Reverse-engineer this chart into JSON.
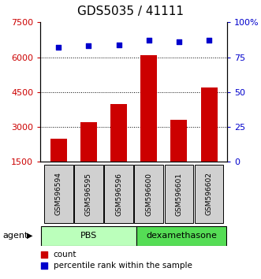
{
  "title": "GDS5035 / 41111",
  "samples": [
    "GSM596594",
    "GSM596595",
    "GSM596596",
    "GSM596600",
    "GSM596601",
    "GSM596602"
  ],
  "counts": [
    2500,
    3200,
    4000,
    6100,
    3300,
    4700
  ],
  "percentile_ranks": [
    82,
    83,
    84,
    87,
    86,
    87
  ],
  "groups": [
    "PBS",
    "PBS",
    "PBS",
    "dexamethasone",
    "dexamethasone",
    "dexamethasone"
  ],
  "pbs_color": "#bbffbb",
  "dexa_color": "#55dd55",
  "bar_color": "#cc0000",
  "point_color": "#0000cc",
  "left_yticks": [
    1500,
    3000,
    4500,
    6000,
    7500
  ],
  "left_ylim": [
    1500,
    7500
  ],
  "right_yticks": [
    0,
    25,
    50,
    75,
    100
  ],
  "right_ylim": [
    0,
    100
  ],
  "right_yticklabels": [
    "0",
    "25",
    "50",
    "75",
    "100%"
  ],
  "left_ylabel_color": "#cc0000",
  "right_ylabel_color": "#0000cc",
  "title_fontsize": 11,
  "tick_fontsize": 8,
  "sample_fontsize": 6.5,
  "group_fontsize": 8,
  "legend_fontsize": 7.5,
  "agent_label": "agent",
  "pbs_label": "PBS",
  "dexa_label": "dexamethasone",
  "legend_count_label": "count",
  "legend_pct_label": "percentile rank within the sample"
}
